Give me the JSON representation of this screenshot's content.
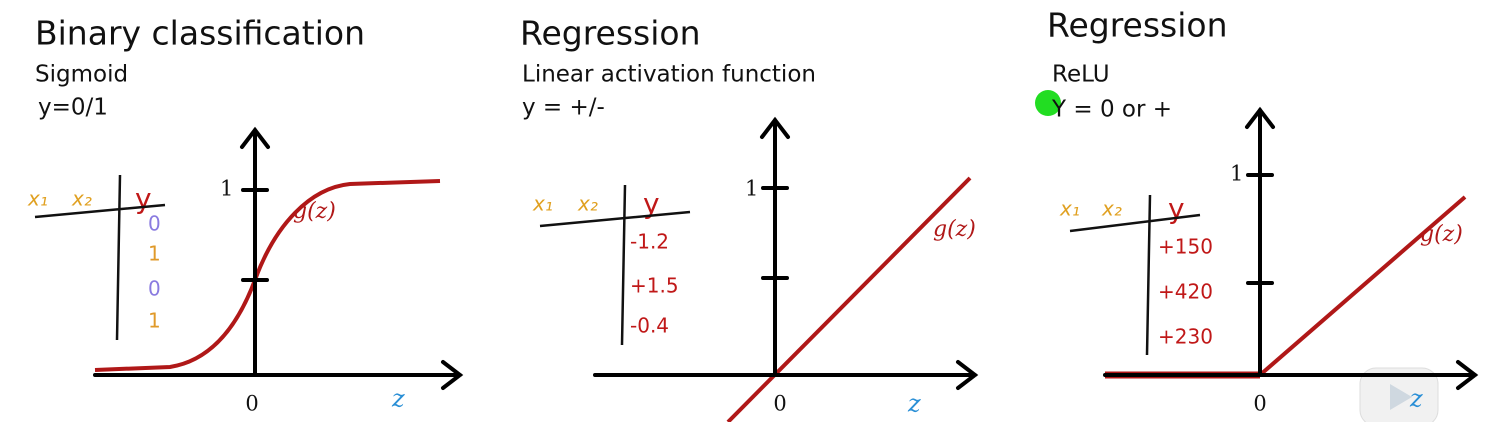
{
  "panels": [
    {
      "title": "Binary classification",
      "subtitle": "Sigmoid",
      "rule": "y=0/1",
      "table": {
        "headers": [
          "x₁",
          "x₂",
          "y"
        ],
        "values": [
          "0",
          "1",
          "0",
          "1"
        ]
      },
      "tick_one": "1",
      "tick_zero": "0",
      "x_label": "z",
      "curve_label": "g(z)"
    },
    {
      "title": "Regression",
      "subtitle": "Linear activation function",
      "rule": "y = +/-",
      "table": {
        "headers": [
          "x₁",
          "x₂",
          "y"
        ],
        "values": [
          "-1.2",
          "+1.5",
          "-0.4"
        ]
      },
      "tick_one": "1",
      "tick_zero": "0",
      "x_label": "z",
      "curve_label": "g(z)"
    },
    {
      "title": "Regression",
      "subtitle": "ReLU",
      "rule": "Y = 0 or +",
      "table": {
        "headers": [
          "x₁",
          "x₂",
          "y"
        ],
        "values": [
          "+150",
          "+420",
          "+230"
        ]
      },
      "tick_one": "1",
      "tick_zero": "0",
      "x_label": "z",
      "curve_label": "g(z)"
    }
  ]
}
